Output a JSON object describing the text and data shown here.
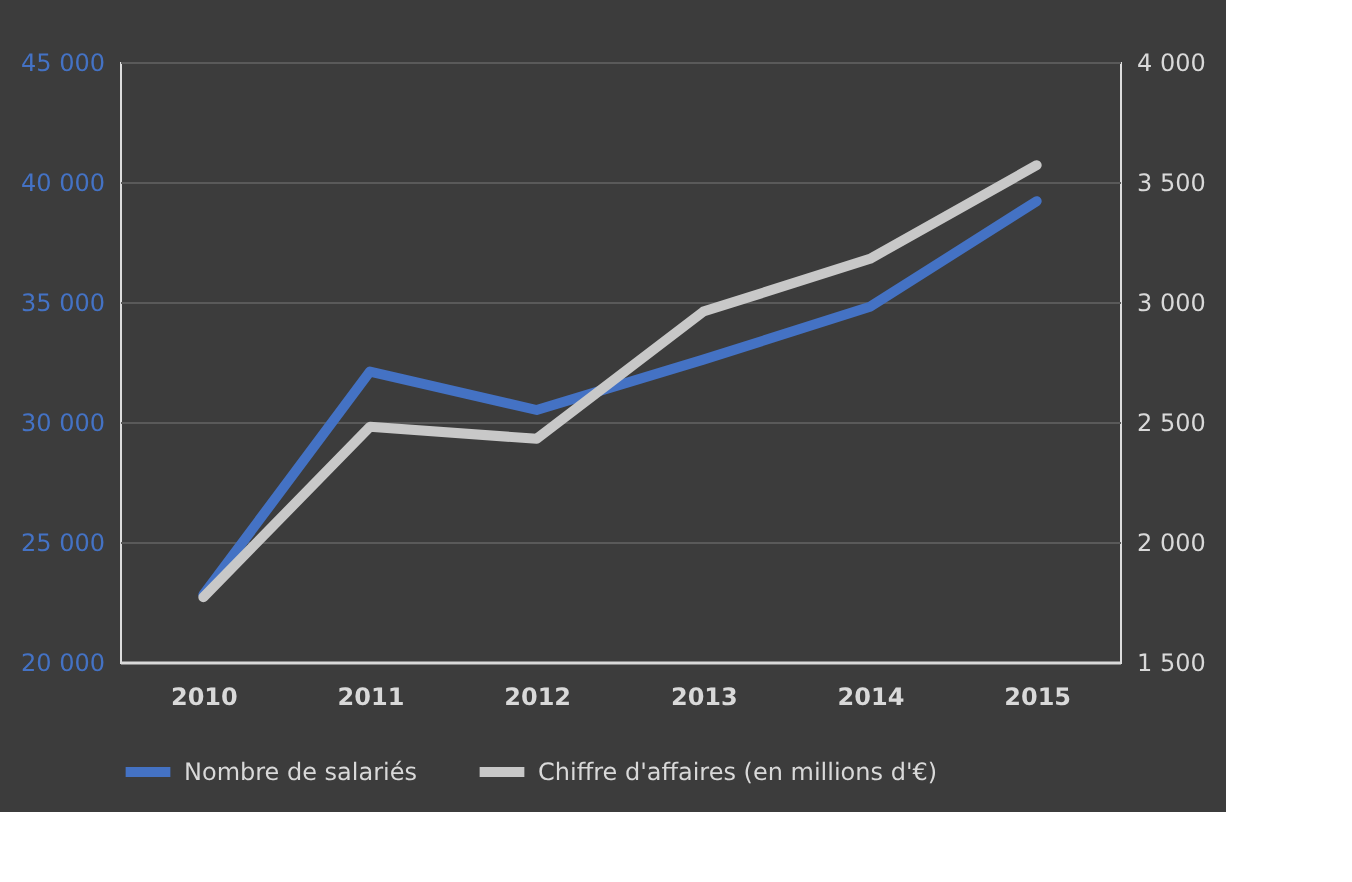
{
  "chart_data": {
    "type": "line",
    "categories": [
      "2010",
      "2011",
      "2012",
      "2013",
      "2014",
      "2015"
    ],
    "series": [
      {
        "name": "Nombre de salariés",
        "color": "#4472c4",
        "values": [
          22800,
          32100,
          30500,
          32600,
          34800,
          39200
        ]
      },
      {
        "name": "Chiffre d'affaires (en millions d'€)",
        "color": "#c8c8c8",
        "axis": "y2",
        "values": [
          1770,
          2480,
          2430,
          2960,
          3180,
          3570
        ]
      }
    ],
    "ylim": [
      20000,
      45000
    ],
    "yticks": [
      {
        "value": 20000,
        "label": "20 000"
      },
      {
        "value": 25000,
        "label": "25 000"
      },
      {
        "value": 30000,
        "label": "30 000"
      },
      {
        "value": 35000,
        "label": "35 000"
      },
      {
        "value": 40000,
        "label": "40 000"
      },
      {
        "value": 45000,
        "label": "45 000"
      }
    ],
    "y2lim": [
      1500,
      4000
    ],
    "y2ticks": [
      {
        "value": 1500,
        "label": "1 500"
      },
      {
        "value": 2000,
        "label": "2 000"
      },
      {
        "value": 2500,
        "label": "2 500"
      },
      {
        "value": 3000,
        "label": "3 000"
      },
      {
        "value": 3500,
        "label": "3 500"
      },
      {
        "value": 4000,
        "label": "4 000"
      }
    ],
    "grid": "y",
    "legend": "bottom",
    "marker": "none",
    "line_style": "solid"
  }
}
